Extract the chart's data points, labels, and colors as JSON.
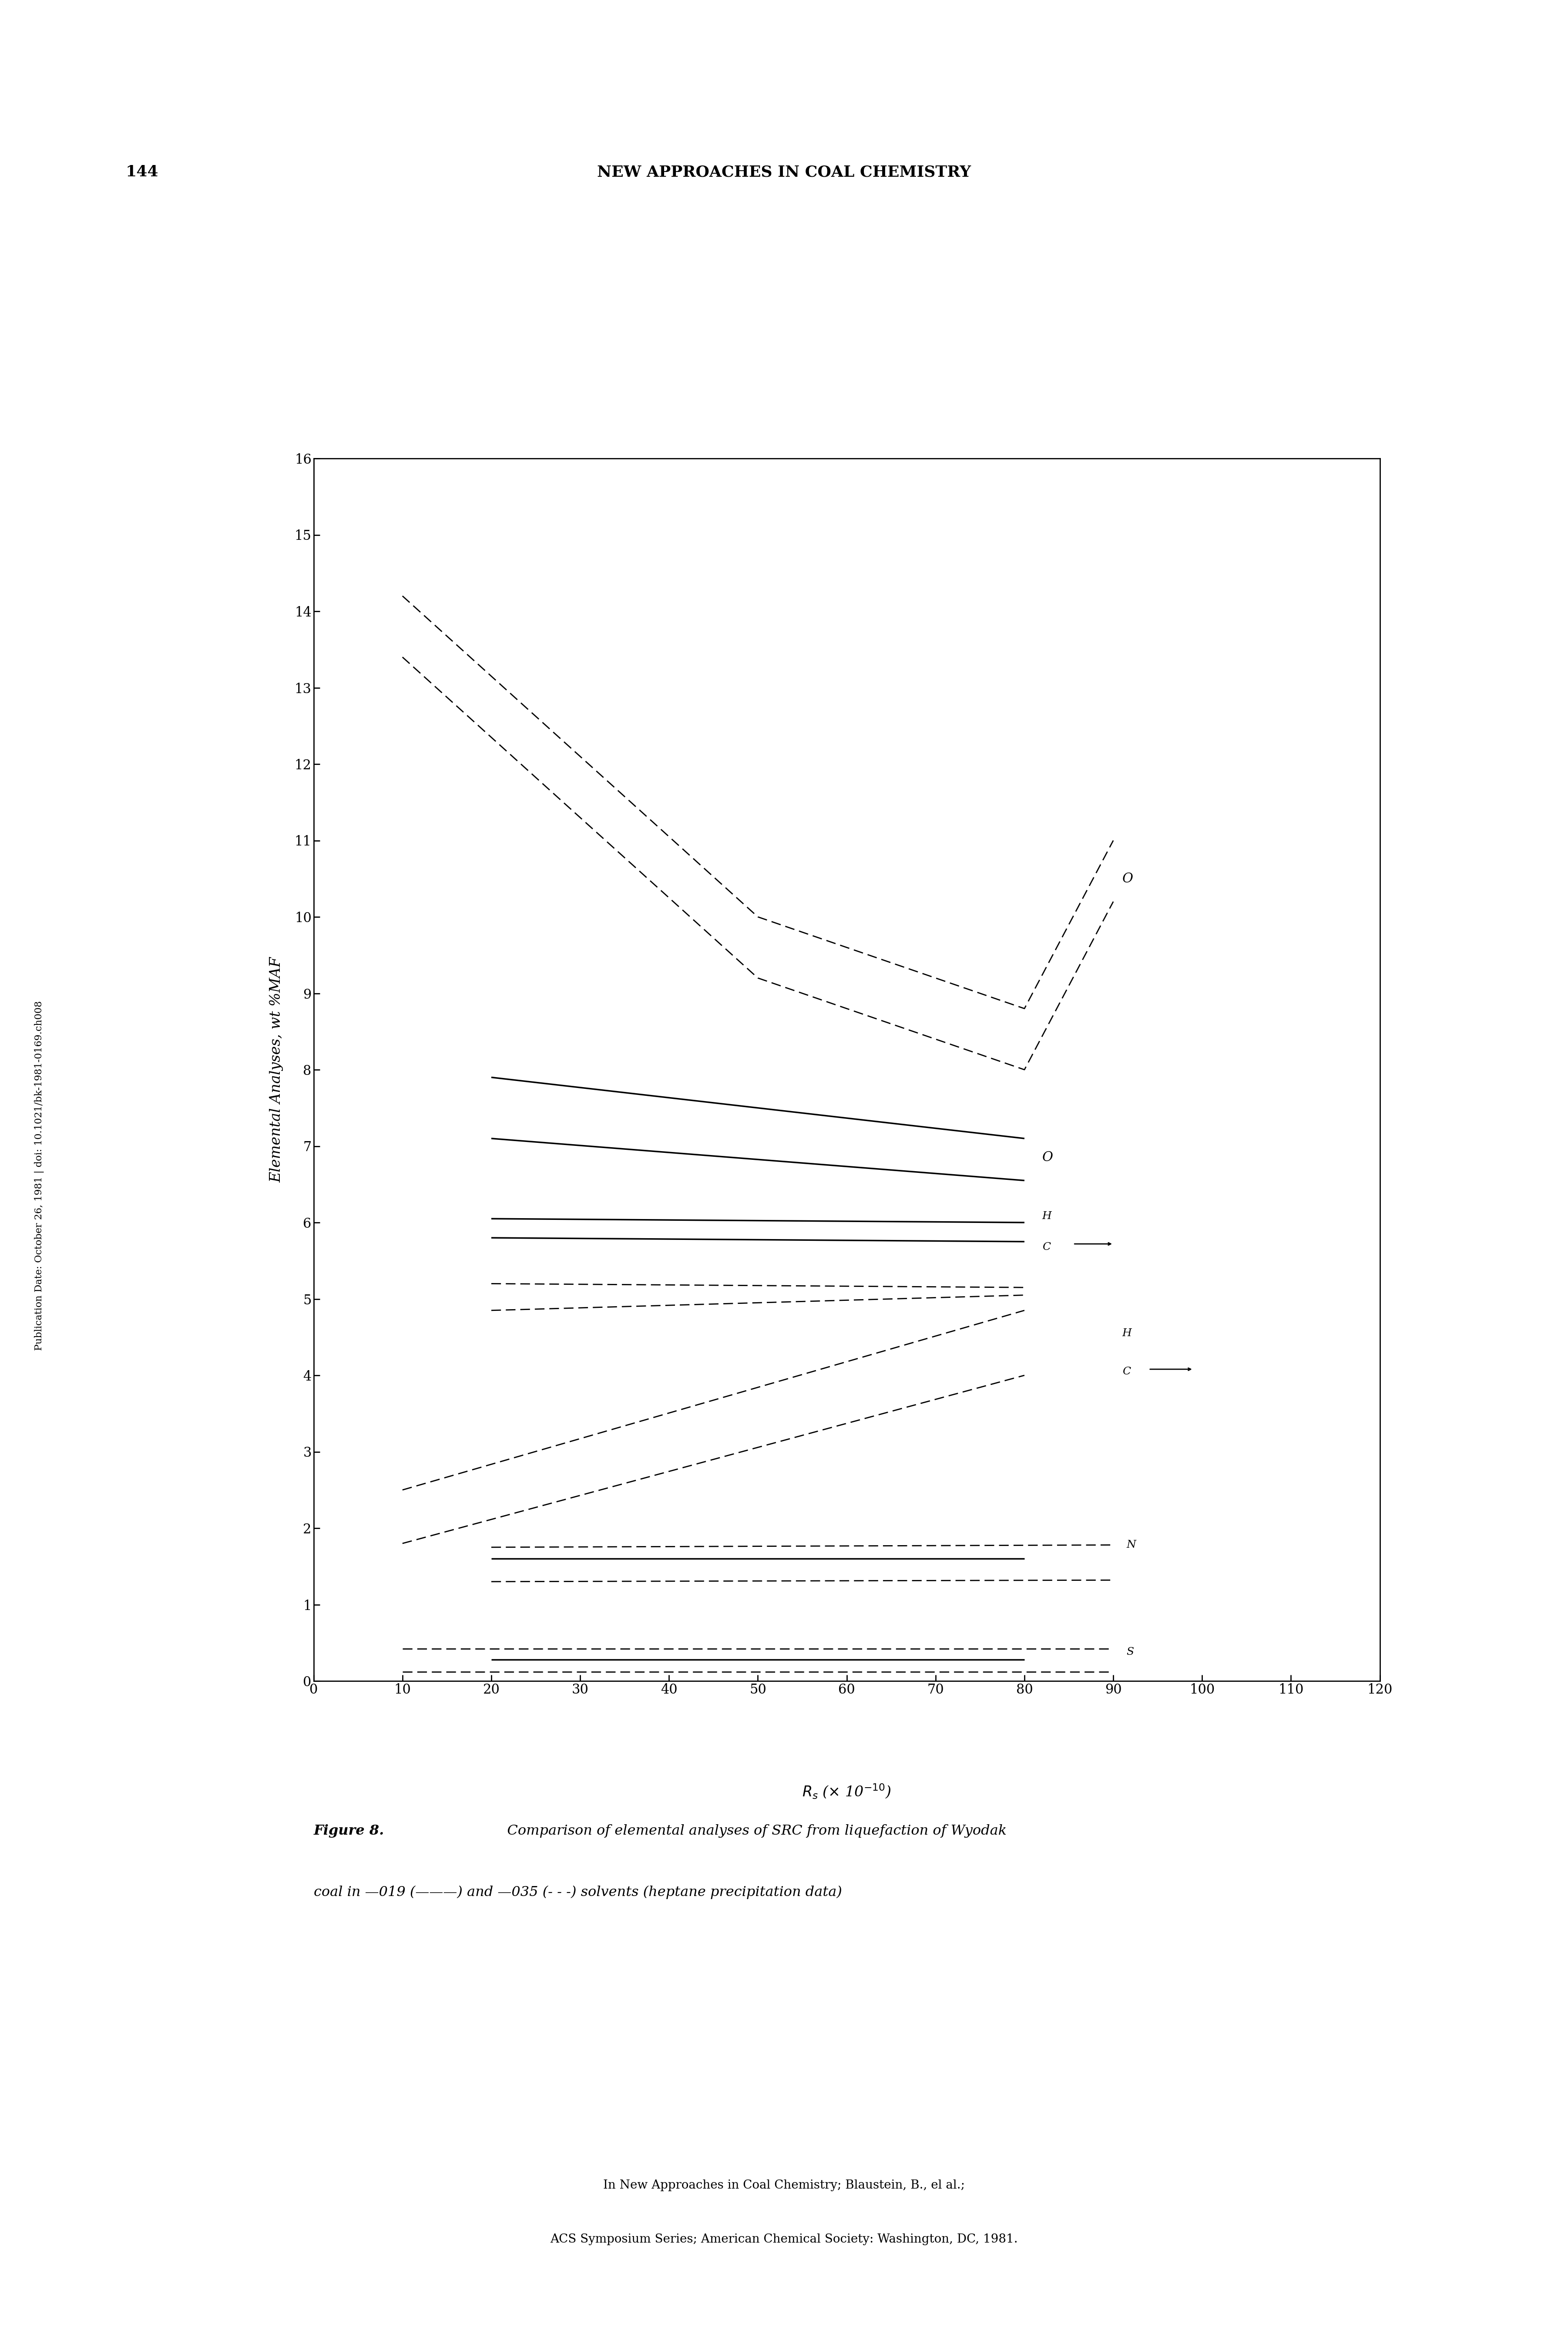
{
  "title_page": "144",
  "header": "NEW APPROACHES IN COAL CHEMISTRY",
  "ylabel": "Elemental Analyses, wt %MAF",
  "xlabel_rs": "R",
  "xlabel_s": "s",
  "xlabel_rest": " (× 10",
  "xlim": [
    0,
    120
  ],
  "ylim": [
    0,
    16
  ],
  "xticks": [
    0,
    10,
    20,
    30,
    40,
    50,
    60,
    70,
    80,
    90,
    100,
    110,
    120
  ],
  "yticks": [
    0,
    1,
    2,
    3,
    4,
    5,
    6,
    7,
    8,
    9,
    10,
    11,
    12,
    13,
    14,
    15,
    16
  ],
  "figure_caption_bold": "Figure 8.",
  "figure_caption_rest": "   Comparison of elemental analyses of SRC from liquefaction of Wyodak",
  "figure_caption_line2": "coal in —019 (———) and —035 (- - -) solvents (heptane precipitation data)",
  "footnote1": "In New Approaches in Coal Chemistry; Blaustein, B., el al.;",
  "footnote2": "ACS Symposium Series; American Chemical Society: Washington, DC, 1981.",
  "side_text": "Publication Date: October 26, 1981 | doi: 10.1021/bk-1981-0169.ch008",
  "solid_lines": [
    {
      "x": [
        20,
        80
      ],
      "y": [
        7.9,
        7.1
      ]
    },
    {
      "x": [
        20,
        80
      ],
      "y": [
        7.1,
        6.55
      ]
    },
    {
      "x": [
        20,
        80
      ],
      "y": [
        6.05,
        6.0
      ]
    },
    {
      "x": [
        20,
        80
      ],
      "y": [
        5.8,
        5.75
      ]
    },
    {
      "x": [
        20,
        80
      ],
      "y": [
        1.6,
        1.6
      ]
    },
    {
      "x": [
        20,
        80
      ],
      "y": [
        0.28,
        0.28
      ]
    }
  ],
  "dashed_lines": [
    {
      "x": [
        10,
        50,
        80,
        90
      ],
      "y": [
        14.2,
        10.0,
        8.8,
        11.0
      ]
    },
    {
      "x": [
        10,
        50,
        80,
        90
      ],
      "y": [
        13.4,
        9.2,
        8.0,
        10.2
      ]
    },
    {
      "x": [
        20,
        80
      ],
      "y": [
        5.2,
        5.15
      ]
    },
    {
      "x": [
        20,
        80
      ],
      "y": [
        4.85,
        5.05
      ]
    },
    {
      "x": [
        10,
        80
      ],
      "y": [
        2.5,
        4.85
      ]
    },
    {
      "x": [
        10,
        80
      ],
      "y": [
        1.8,
        4.0
      ]
    },
    {
      "x": [
        20,
        90
      ],
      "y": [
        1.75,
        1.78
      ]
    },
    {
      "x": [
        20,
        90
      ],
      "y": [
        1.3,
        1.32
      ]
    },
    {
      "x": [
        10,
        90
      ],
      "y": [
        0.42,
        0.42
      ]
    },
    {
      "x": [
        10,
        90
      ],
      "y": [
        0.12,
        0.12
      ]
    }
  ],
  "lw_solid": 2.5,
  "lw_dashed": 2.0,
  "dash_on": 8,
  "dash_off": 4,
  "color": "black"
}
